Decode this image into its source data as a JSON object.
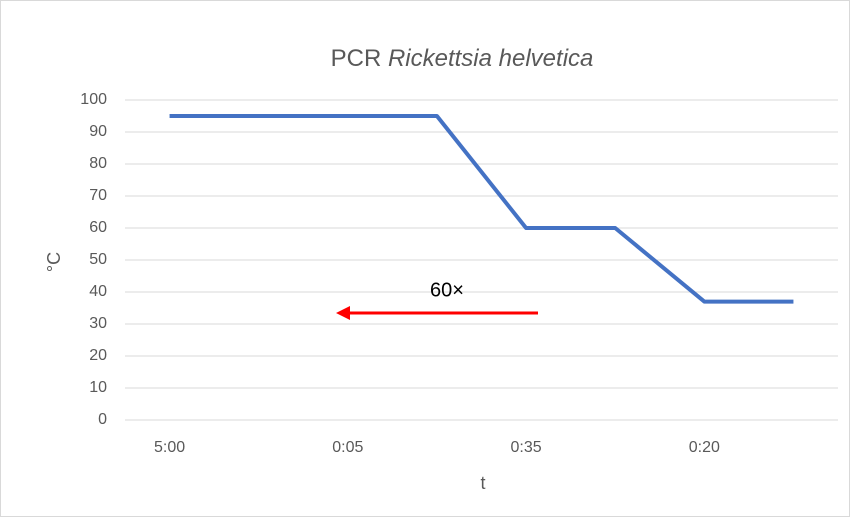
{
  "chart_data": {
    "type": "line",
    "title": [
      "PCR",
      "Rickettsia helvetica"
    ],
    "xlabel": "t",
    "ylabel": "°C",
    "categories": [
      "5:00",
      null,
      "0:05",
      null,
      "0:35",
      null,
      "0:20",
      null
    ],
    "series": [
      {
        "name": "°C",
        "color": "#4472c4",
        "values": [
          95,
          95,
          95,
          95,
          60,
          60,
          37,
          37
        ]
      }
    ],
    "ylim": [
      0,
      100
    ],
    "yticks": [
      0,
      10,
      20,
      30,
      40,
      50,
      60,
      70,
      80,
      90,
      100
    ],
    "grid": true,
    "annotations": [
      {
        "text": "60×",
        "color": "#ff0000"
      }
    ]
  }
}
